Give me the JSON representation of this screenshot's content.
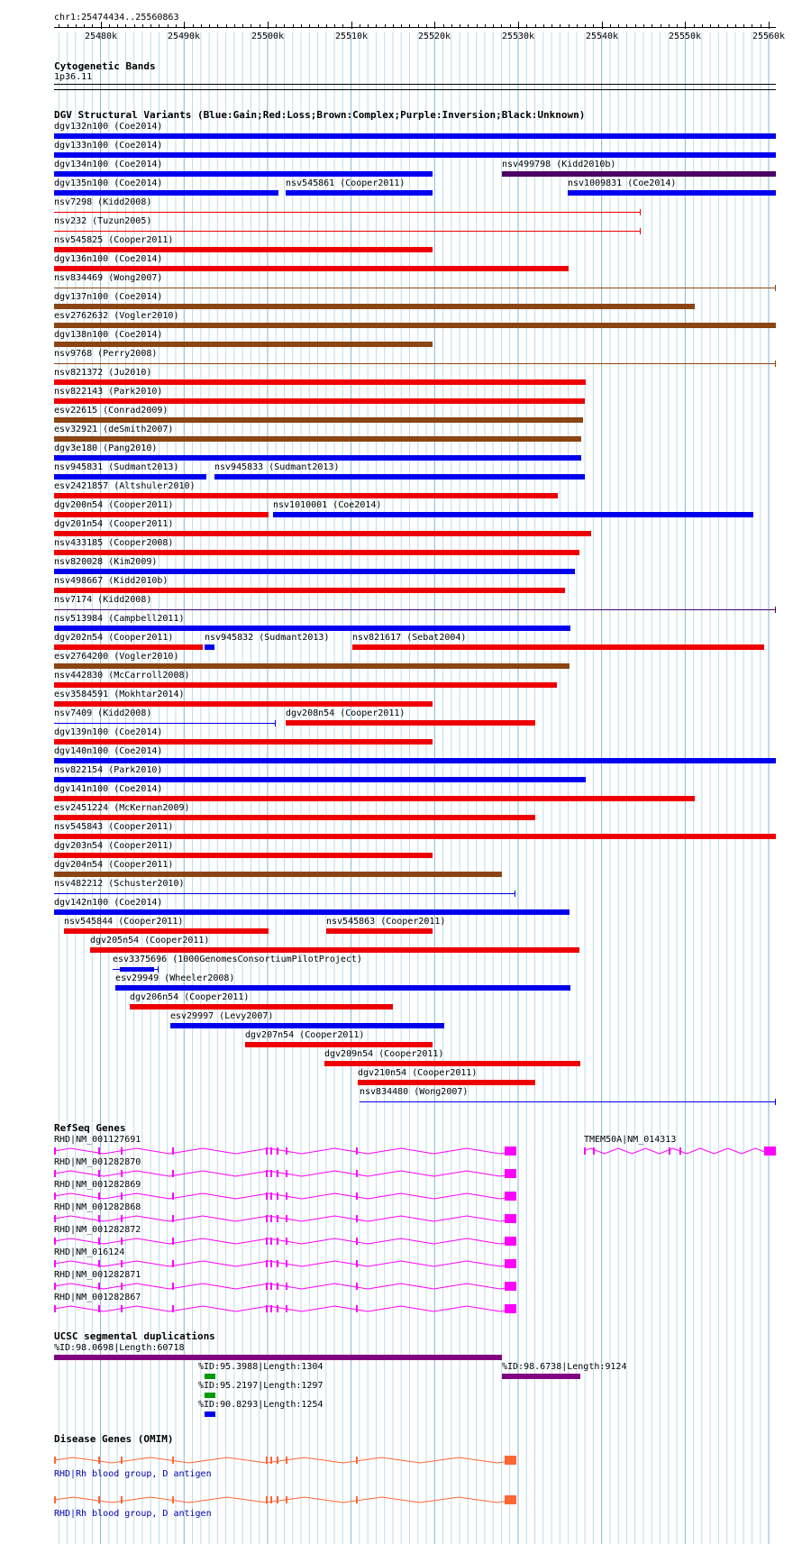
{
  "ruler": {
    "location": "chr1:25474434..25560863",
    "start": 25474434,
    "end": 25560863,
    "ticks": [
      "25480k",
      "25490k",
      "25500k",
      "25510k",
      "25520k",
      "25530k",
      "25540k",
      "25550k",
      "25560k"
    ]
  },
  "tracks": {
    "cytoband": {
      "title": "Cytogenetic Bands",
      "band": "1p36.11"
    },
    "dgv": {
      "title": "DGV Structural Variants (Blue:Gain;Red:Loss;Brown:Complex;Purple:Inversion;Black:Unknown)",
      "colors": {
        "gain": "#0000ee",
        "loss": "#ee0000",
        "complex": "#8b4513",
        "inversion": "#4b0066",
        "loss_thin": "#ee0000"
      },
      "features": [
        {
          "label": "dgv132n100 (Coe2014)",
          "type": "gain",
          "start": 25474434,
          "end": 25560863,
          "row": 0
        },
        {
          "label": "dgv133n100 (Coe2014)",
          "type": "gain",
          "start": 25474434,
          "end": 25560863,
          "row": 1
        },
        {
          "label": "dgv134n100 (Coe2014)",
          "type": "gain",
          "start": 25474434,
          "end": 25519800,
          "row": 2
        },
        {
          "label": "nsv499798 (Kidd2010b)",
          "type": "inversion",
          "start": 25528100,
          "end": 25560863,
          "row": 2
        },
        {
          "label": "dgv135n100 (Coe2014)",
          "type": "gain",
          "start": 25474434,
          "end": 25501300,
          "row": 3
        },
        {
          "label": "nsv545861 (Cooper2011)",
          "type": "gain",
          "start": 25502200,
          "end": 25519800,
          "row": 3
        },
        {
          "label": "nsv1009831 (Coe2014)",
          "type": "gain",
          "start": 25535900,
          "end": 25560863,
          "row": 3
        },
        {
          "label": "nsv7298 (Kidd2008)",
          "type": "loss_thin",
          "start": 25474434,
          "end": 25544700,
          "row": 4
        },
        {
          "label": "nsv232 (Tuzun2005)",
          "type": "loss_thin",
          "start": 25474434,
          "end": 25544700,
          "row": 5
        },
        {
          "label": "nsv545825 (Cooper2011)",
          "type": "loss",
          "start": 25474434,
          "end": 25519800,
          "row": 6
        },
        {
          "label": "dgv136n100 (Coe2014)",
          "type": "loss",
          "start": 25474434,
          "end": 25536000,
          "row": 7
        },
        {
          "label": "nsv834469 (Wong2007)",
          "type": "complex_thin",
          "start": 25474434,
          "end": 25560863,
          "row": 8
        },
        {
          "label": "dgv137n100 (Coe2014)",
          "type": "complex",
          "start": 25474434,
          "end": 25551100,
          "row": 9
        },
        {
          "label": "esv2762632 (Vogler2010)",
          "type": "complex",
          "start": 25474434,
          "end": 25560863,
          "row": 10
        },
        {
          "label": "dgv138n100 (Coe2014)",
          "type": "complex",
          "start": 25474434,
          "end": 25519800,
          "row": 11
        },
        {
          "label": "nsv9768 (Perry2008)",
          "type": "complex_thin",
          "start": 25474434,
          "end": 25560863,
          "row": 12
        },
        {
          "label": "nsv821372 (Ju2010)",
          "type": "loss",
          "start": 25474434,
          "end": 25538100,
          "row": 13
        },
        {
          "label": "nsv822143 (Park2010)",
          "type": "loss",
          "start": 25474434,
          "end": 25538000,
          "row": 14
        },
        {
          "label": "esv22615 (Conrad2009)",
          "type": "complex",
          "start": 25474434,
          "end": 25537800,
          "row": 15
        },
        {
          "label": "esv32921 (deSmith2007)",
          "type": "complex",
          "start": 25474434,
          "end": 25537600,
          "row": 16
        },
        {
          "label": "dgv3e180 (Pang2010)",
          "type": "gain",
          "start": 25474434,
          "end": 25537600,
          "row": 17
        },
        {
          "label": "nsv945831 (Sudmant2013)",
          "type": "gain",
          "start": 25474434,
          "end": 25492700,
          "row": 18
        },
        {
          "label": "nsv945833 (Sudmant2013)",
          "type": "gain",
          "start": 25493600,
          "end": 25538000,
          "row": 18
        },
        {
          "label": "esv2421857 (Altshuler2010)",
          "type": "loss",
          "start": 25474434,
          "end": 25534800,
          "row": 19
        },
        {
          "label": "dgv200n54 (Cooper2011)",
          "type": "loss",
          "start": 25474434,
          "end": 25500100,
          "row": 20
        },
        {
          "label": "nsv1010001 (Coe2014)",
          "type": "gain",
          "start": 25500700,
          "end": 25558200,
          "row": 20
        },
        {
          "label": "dgv201n54 (Cooper2011)",
          "type": "loss",
          "start": 25474434,
          "end": 25538700,
          "row": 21
        },
        {
          "label": "nsv433185 (Cooper2008)",
          "type": "loss",
          "start": 25474434,
          "end": 25537300,
          "row": 22
        },
        {
          "label": "nsv820028 (Kim2009)",
          "type": "gain",
          "start": 25474434,
          "end": 25536800,
          "row": 23
        },
        {
          "label": "nsv498667 (Kidd2010b)",
          "type": "loss",
          "start": 25474434,
          "end": 25535600,
          "row": 24
        },
        {
          "label": "nsv7174 (Kidd2008)",
          "type": "inversion_thin",
          "start": 25474434,
          "end": 25560863,
          "row": 25
        },
        {
          "label": "nsv513984 (Campbell2011)",
          "type": "gain",
          "start": 25474434,
          "end": 25536300,
          "row": 26
        },
        {
          "label": "dgv202n54 (Cooper2011)",
          "type": "loss",
          "start": 25474434,
          "end": 25492200,
          "row": 27
        },
        {
          "label": "nsv945832 (Sudmant2013)",
          "type": "gain",
          "start": 25492400,
          "end": 25493600,
          "row": 27
        },
        {
          "label": "nsv821617 (Sebat2004)",
          "type": "loss",
          "start": 25510200,
          "end": 25559500,
          "row": 27
        },
        {
          "label": "esv2764200 (Vogler2010)",
          "type": "complex",
          "start": 25474434,
          "end": 25536100,
          "row": 28
        },
        {
          "label": "nsv442830 (McCarroll2008)",
          "type": "loss",
          "start": 25474434,
          "end": 25534600,
          "row": 29
        },
        {
          "label": "esv3584591 (Mokhtar2014)",
          "type": "loss",
          "start": 25474434,
          "end": 25519800,
          "row": 30
        },
        {
          "label": "nsv7409 (Kidd2008)",
          "type": "gain_thin",
          "start": 25474434,
          "end": 25501000,
          "row": 31
        },
        {
          "label": "dgv208n54 (Cooper2011)",
          "type": "loss",
          "start": 25502200,
          "end": 25532100,
          "row": 31
        },
        {
          "label": "dgv139n100 (Coe2014)",
          "type": "loss",
          "start": 25474434,
          "end": 25519800,
          "row": 32
        },
        {
          "label": "dgv140n100 (Coe2014)",
          "type": "gain",
          "start": 25474434,
          "end": 25560863,
          "row": 33
        },
        {
          "label": "nsv822154 (Park2010)",
          "type": "gain",
          "start": 25474434,
          "end": 25538100,
          "row": 34
        },
        {
          "label": "dgv141n100 (Coe2014)",
          "type": "loss",
          "start": 25474434,
          "end": 25551100,
          "row": 35
        },
        {
          "label": "esv2451224 (McKernan2009)",
          "type": "loss",
          "start": 25474434,
          "end": 25532000,
          "row": 36
        },
        {
          "label": "nsv545843 (Cooper2011)",
          "type": "loss",
          "start": 25474434,
          "end": 25560863,
          "row": 37
        },
        {
          "label": "dgv203n54 (Cooper2011)",
          "type": "loss",
          "start": 25474434,
          "end": 25519800,
          "row": 38
        },
        {
          "label": "dgv204n54 (Cooper2011)",
          "type": "complex",
          "start": 25474434,
          "end": 25528100,
          "row": 39
        },
        {
          "label": "nsv482212 (Schuster2010)",
          "type": "gain_thin",
          "start": 25474434,
          "end": 25529700,
          "row": 40
        },
        {
          "label": "dgv142n100 (Coe2014)",
          "type": "gain",
          "start": 25474434,
          "end": 25536100,
          "row": 41
        },
        {
          "label": "nsv545844 (Cooper2011)",
          "type": "loss",
          "start": 25475600,
          "end": 25500100,
          "row": 42
        },
        {
          "label": "nsv545863 (Cooper2011)",
          "type": "loss",
          "start": 25507000,
          "end": 25519800,
          "row": 42
        },
        {
          "label": "dgv205n54 (Cooper2011)",
          "type": "loss",
          "start": 25478800,
          "end": 25537300,
          "row": 43
        },
        {
          "label": "esv3375696 (1000GenomesConsortiumPilotProject)",
          "type": "gain_mixed",
          "start": 25481500,
          "end": 25487000,
          "row": 44
        },
        {
          "label": "esv29949 (Wheeler2008)",
          "type": "gain",
          "start": 25481800,
          "end": 25536300,
          "row": 45
        },
        {
          "label": "dgv206n54 (Cooper2011)",
          "type": "loss",
          "start": 25483500,
          "end": 25515000,
          "row": 46
        },
        {
          "label": "esv29997 (Levy2007)",
          "type": "gain",
          "start": 25488400,
          "end": 25521200,
          "row": 47
        },
        {
          "label": "dgv207n54 (Cooper2011)",
          "type": "loss",
          "start": 25497300,
          "end": 25519800,
          "row": 48
        },
        {
          "label": "dgv209n54 (Cooper2011)",
          "type": "loss",
          "start": 25506800,
          "end": 25537500,
          "row": 49
        },
        {
          "label": "dgv210n54 (Cooper2011)",
          "type": "loss",
          "start": 25510800,
          "end": 25532000,
          "row": 50
        },
        {
          "label": "nsv834480 (Wong2007)",
          "type": "gain_thin",
          "start": 25511000,
          "end": 25560863,
          "row": 51
        }
      ]
    },
    "refseq": {
      "title": "RefSeq Genes",
      "color": "#ff00ff",
      "genes": [
        {
          "label": "RHD|NM_001127691",
          "row": 0
        },
        {
          "label": "TMEM50A|NM_014313",
          "row": 0,
          "other": true
        },
        {
          "label": "RHD|NM_001282870",
          "row": 1
        },
        {
          "label": "RHD|NM_001282869",
          "row": 2
        },
        {
          "label": "RHD|NM_001282868",
          "row": 3
        },
        {
          "label": "RHD|NM_001282872",
          "row": 4
        },
        {
          "label": "RHD|NM_016124",
          "row": 5
        },
        {
          "label": "RHD|NM_001282871",
          "row": 6
        },
        {
          "label": "RHD|NM_001282867",
          "row": 7
        }
      ]
    },
    "segdup": {
      "title": "UCSC segmental duplications",
      "items": [
        {
          "label": "%ID:98.0698|Length:60718",
          "color": "#800080",
          "start": 25474434,
          "end": 25528100
        },
        {
          "label": "%ID:95.3988|Length:1304",
          "color": "#009900",
          "start": 25492400,
          "end": 25493700
        },
        {
          "label": "%ID:98.6738|Length:9124",
          "color": "#800080",
          "start": 25528100,
          "end": 25537500
        },
        {
          "label": "%ID:95.2197|Length:1297",
          "color": "#009900",
          "start": 25492400,
          "end": 25493700
        },
        {
          "label": "%ID:90.8293|Length:1254",
          "color": "#0000ee",
          "start": 25492400,
          "end": 25493700
        }
      ]
    },
    "omim": {
      "title": "Disease Genes (OMIM)",
      "color": "#ff6633",
      "label_color": "#0000aa",
      "genes": [
        {
          "label": "RHD|Rh blood group, D antigen"
        },
        {
          "label": "RHD|Rh blood group, D antigen"
        }
      ]
    }
  }
}
